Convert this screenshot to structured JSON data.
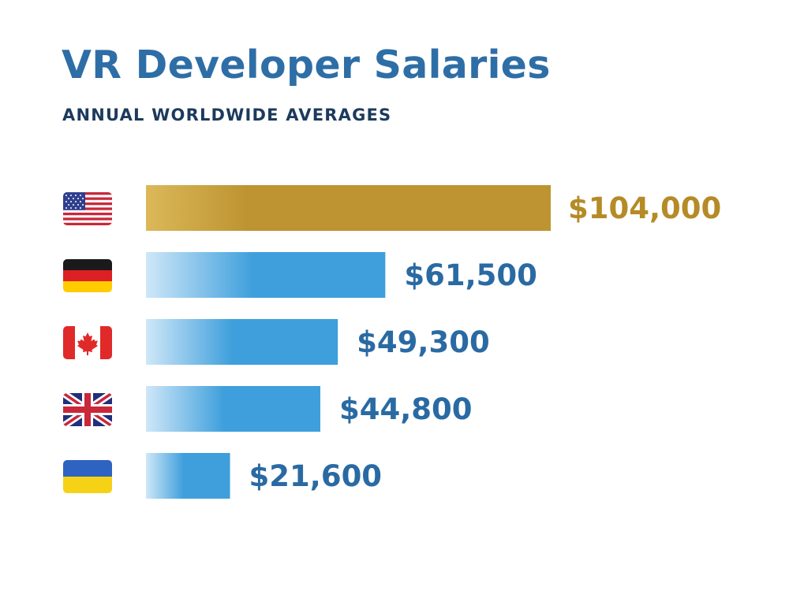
{
  "header": {
    "title": "VR Developer Salaries",
    "subtitle": "ANNUAL WORLDWIDE AVERAGES"
  },
  "colors": {
    "title": "#2e6ea6",
    "subtitle": "#1c3a5c",
    "highlight_bar": "#bd9431",
    "highlight_bar_light": "#dcb859",
    "highlight_label": "#b58b27",
    "bar": "#3e9fdc",
    "bar_light": "#cfe7f8",
    "label": "#2a6aa3"
  },
  "chart_data": {
    "type": "bar",
    "orientation": "horizontal",
    "title": "VR Developer Salaries",
    "subtitle": "ANNUAL WORLDWIDE AVERAGES",
    "xlabel": "",
    "ylabel": "",
    "xlim": [
      0,
      104000
    ],
    "grid": false,
    "legend": "none",
    "categories": [
      "us-flag",
      "germany-flag",
      "canada-flag",
      "uk-flag",
      "ukraine-flag"
    ],
    "values": [
      104000,
      61500,
      49300,
      44800,
      21600
    ],
    "labels": [
      "$104,000",
      "$61,500",
      "$49,300",
      "$44,800",
      "$21,600"
    ],
    "highlight_index": 0
  }
}
